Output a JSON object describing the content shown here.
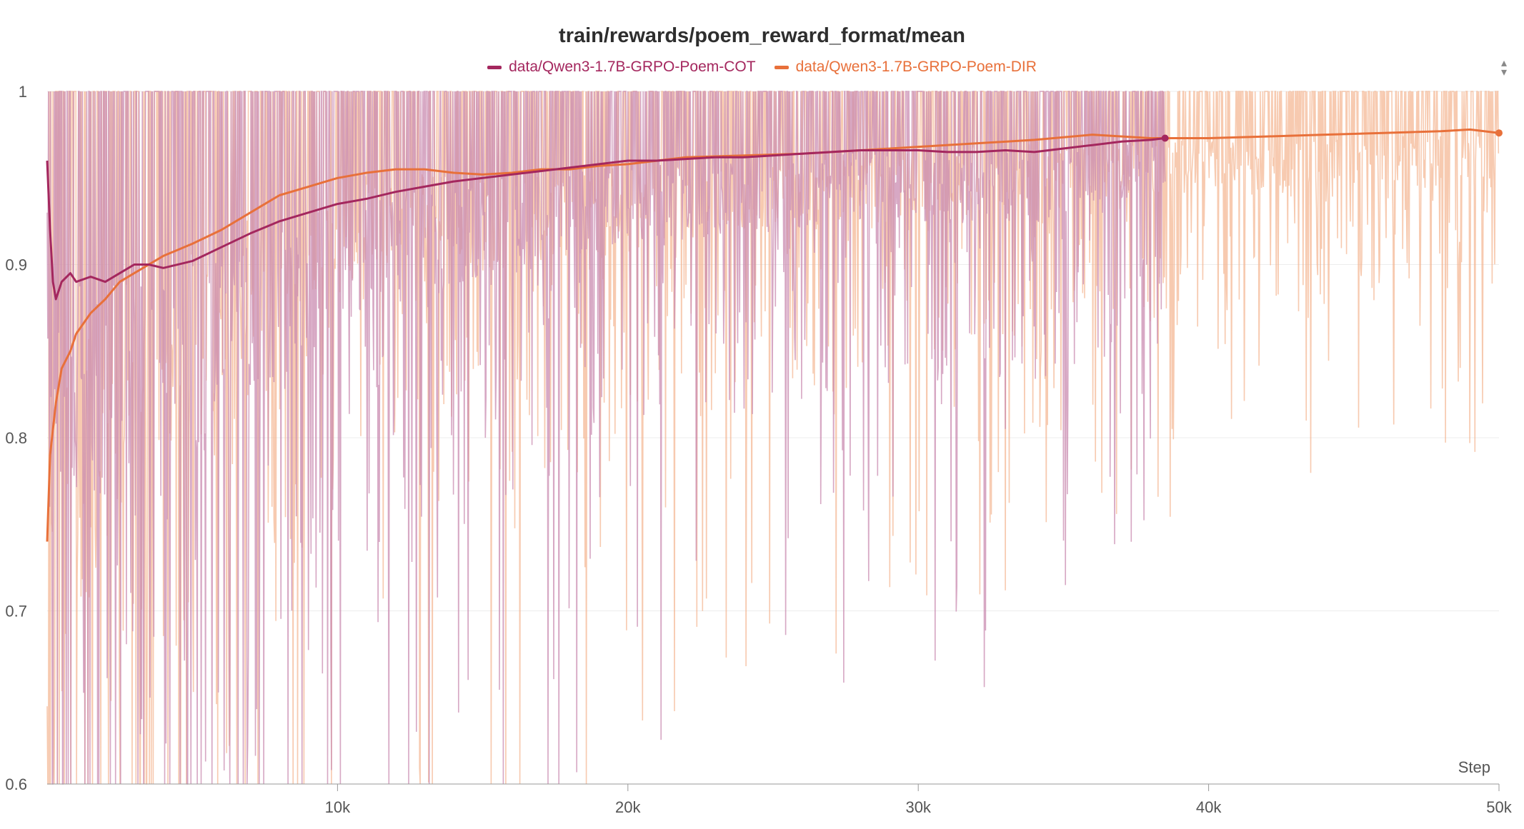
{
  "chart_data": {
    "type": "line",
    "title": "train/rewards/poem_reward_format/mean",
    "xlabel": "Step",
    "ylabel": "",
    "xlim": [
      0,
      50000
    ],
    "ylim": [
      0.6,
      1.0
    ],
    "x_ticks": [
      10000,
      20000,
      30000,
      40000,
      50000
    ],
    "x_tick_labels": [
      "10k",
      "20k",
      "30k",
      "40k",
      "50k"
    ],
    "y_ticks": [
      0.6,
      0.7,
      0.8,
      0.9,
      1.0
    ],
    "y_tick_labels": [
      "0.6",
      "0.7",
      "0.8",
      "0.9",
      "1"
    ],
    "grid": true,
    "legend_position": "top-center",
    "series": [
      {
        "name": "data/Qwen3-1.7B-GRPO-Poem-COT",
        "color": "#a4275e",
        "raw_color": "#c98bb0",
        "x": [
          0,
          100,
          200,
          300,
          500,
          800,
          1000,
          1500,
          2000,
          2500,
          3000,
          3500,
          4000,
          5000,
          6000,
          7000,
          8000,
          9000,
          10000,
          11000,
          12000,
          13000,
          14000,
          15000,
          16000,
          17000,
          18000,
          19000,
          20000,
          21000,
          22000,
          23000,
          24000,
          25000,
          26000,
          27000,
          28000,
          29000,
          30000,
          31000,
          32000,
          33000,
          34000,
          35000,
          36000,
          37000,
          38000,
          38500
        ],
        "y": [
          0.96,
          0.92,
          0.89,
          0.88,
          0.89,
          0.895,
          0.89,
          0.893,
          0.89,
          0.895,
          0.9,
          0.9,
          0.898,
          0.902,
          0.91,
          0.918,
          0.925,
          0.93,
          0.935,
          0.938,
          0.942,
          0.945,
          0.948,
          0.95,
          0.952,
          0.954,
          0.956,
          0.958,
          0.96,
          0.96,
          0.961,
          0.962,
          0.962,
          0.963,
          0.964,
          0.965,
          0.966,
          0.966,
          0.966,
          0.965,
          0.965,
          0.966,
          0.965,
          0.967,
          0.969,
          0.971,
          0.972,
          0.973
        ]
      },
      {
        "name": "data/Qwen3-1.7B-GRPO-Poem-DIR",
        "color": "#e8703a",
        "raw_color": "#f4b48f",
        "x": [
          0,
          100,
          300,
          500,
          800,
          1000,
          1500,
          2000,
          2500,
          3000,
          3500,
          4000,
          5000,
          6000,
          7000,
          8000,
          9000,
          10000,
          11000,
          12000,
          13000,
          14000,
          15000,
          16000,
          17000,
          18000,
          19000,
          20000,
          22000,
          24000,
          26000,
          28000,
          30000,
          32000,
          34000,
          36000,
          38000,
          40000,
          42000,
          44000,
          46000,
          48000,
          49000,
          50000
        ],
        "y": [
          0.74,
          0.79,
          0.82,
          0.84,
          0.85,
          0.86,
          0.872,
          0.88,
          0.89,
          0.895,
          0.9,
          0.905,
          0.912,
          0.92,
          0.93,
          0.94,
          0.945,
          0.95,
          0.953,
          0.955,
          0.955,
          0.953,
          0.952,
          0.953,
          0.955,
          0.955,
          0.957,
          0.958,
          0.962,
          0.963,
          0.964,
          0.966,
          0.968,
          0.97,
          0.972,
          0.975,
          0.973,
          0.973,
          0.974,
          0.975,
          0.976,
          0.977,
          0.978,
          0.976
        ]
      }
    ]
  }
}
